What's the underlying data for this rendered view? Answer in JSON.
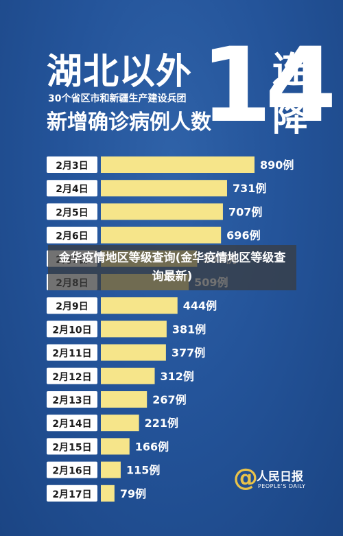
{
  "header": {
    "title": "湖北以外",
    "subtitle": "30个省区市和新疆生产建设兵团",
    "subtitle2": "新增确诊病例人数",
    "big_number": "14",
    "vertical_text": "连降"
  },
  "overlay": {
    "text": "金华疫情地区等级查询(金华疫情地区等级查询最新)"
  },
  "logo": {
    "cn": "人民日报",
    "en": "PEOPLE'S DAILY",
    "symbol": "@"
  },
  "colors": {
    "bar": "#f6e58a",
    "background": "#24549a",
    "label_box": "#ffffff",
    "text": "#ffffff"
  },
  "chart_data": {
    "type": "bar",
    "orientation": "horizontal",
    "categories": [
      "2月3日",
      "2月4日",
      "2月5日",
      "2月6日",
      "2月7日",
      "2月8日",
      "2月9日",
      "2月10日",
      "2月11日",
      "2月12日",
      "2月13日",
      "2月14日",
      "2月15日",
      "2月16日",
      "2月17日"
    ],
    "values": [
      890,
      731,
      707,
      696,
      558,
      509,
      444,
      381,
      377,
      312,
      267,
      221,
      166,
      115,
      79
    ],
    "value_labels": [
      "890例",
      "731例",
      "707例",
      "696例",
      "558例",
      "509例",
      "444例",
      "381例",
      "377例",
      "312例",
      "267例",
      "221例",
      "166例",
      "115例",
      "79例"
    ],
    "xlim": [
      0,
      890
    ],
    "grid": false
  }
}
